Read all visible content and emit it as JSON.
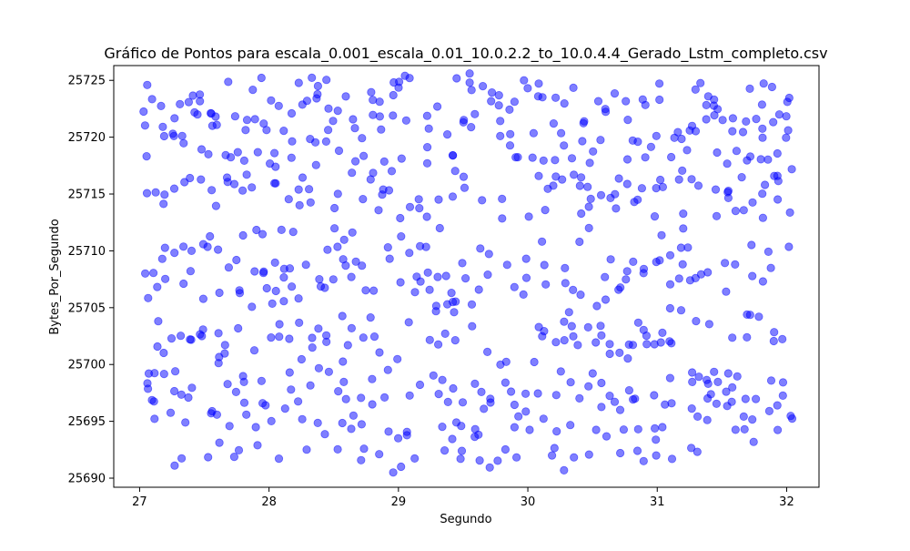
{
  "chart_data": {
    "type": "scatter",
    "title": "Gráfico de Pontos para escala_0.001_escala_0.01_10.0.2.2_to_10.0.4.4_Gerado_Lstm_completo.csv",
    "xlabel": "Segundo",
    "ylabel": "Bytes_Por_Segundo",
    "xlim": [
      26.8,
      32.25
    ],
    "ylim": [
      25689.2,
      25726.3
    ],
    "xticks": [
      27,
      28,
      29,
      30,
      31,
      32
    ],
    "yticks": [
      25690,
      25695,
      25700,
      25705,
      25710,
      25715,
      25720,
      25725
    ],
    "grid": false,
    "legend": "none",
    "marker_color": "#0000ff",
    "marker_alpha": 0.5,
    "x_range": [
      27.05,
      32.05
    ],
    "levels": [
      25691.5,
      25693.5,
      25694.8,
      25696.5,
      25697.5,
      25698.5,
      25699.5,
      25701.5,
      25702.8,
      25703.8,
      25706.0,
      25707.5,
      25708.3,
      25709.5,
      25711.0,
      25713.8,
      25715.5,
      25716.0,
      25717.5,
      25719.0,
      25720.5,
      25721.5,
      25722.5,
      25723.5,
      25724.2
    ],
    "center_points": [
      {
        "x": 29.02,
        "y": 25691.0
      },
      {
        "x": 29.48,
        "y": 25691.7
      },
      {
        "x": 29.49,
        "y": 25692.4
      },
      {
        "x": 29.41,
        "y": 25706.3
      },
      {
        "x": 29.42,
        "y": 25705.5
      },
      {
        "x": 29.43,
        "y": 25704.6
      },
      {
        "x": 29.22,
        "y": 25713.0
      },
      {
        "x": 29.32,
        "y": 25712.0
      },
      {
        "x": 29.42,
        "y": 25718.4
      },
      {
        "x": 29.42,
        "y": 25718.4
      },
      {
        "x": 29.05,
        "y": 25725.4
      },
      {
        "x": 29.55,
        "y": 25725.6
      },
      {
        "x": 29.55,
        "y": 25724.8
      },
      {
        "x": 29.97,
        "y": 25725.0
      },
      {
        "x": 30.85,
        "y": 25719.6
      },
      {
        "x": 28.05,
        "y": 25717.4
      }
    ]
  }
}
